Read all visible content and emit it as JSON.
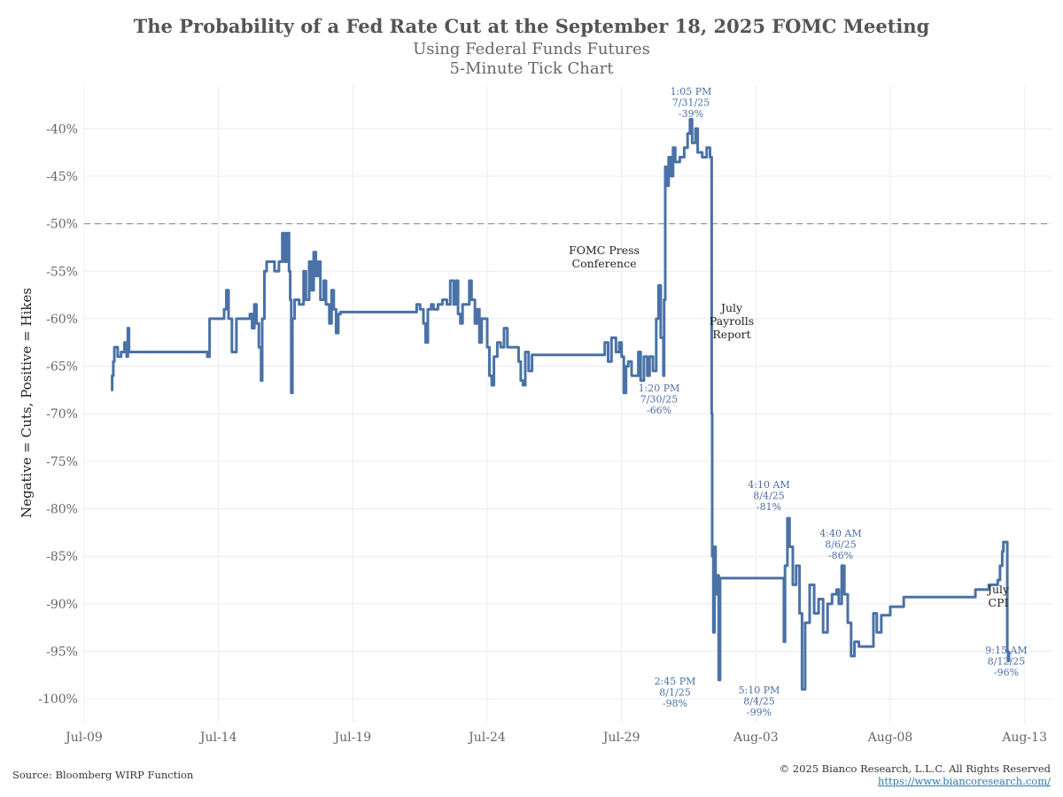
{
  "chart_data": {
    "type": "line",
    "title": "The Probability of a Fed Rate Cut at the September 18, 2025 FOMC Meeting",
    "subtitle": "Using Federal Funds Futures",
    "subtitle2": "5-Minute Tick Chart",
    "ylabel": "Negative = Cuts, Positive = Hikes",
    "xlabel": "",
    "x_axis_type": "date",
    "xlim": [
      "2025-07-09",
      "2025-08-14"
    ],
    "ylim": [
      -102.5,
      -35.5
    ],
    "x_ticks": [
      {
        "date": "2025-07-09",
        "label": "Jul-09"
      },
      {
        "date": "2025-07-14",
        "label": "Jul-14"
      },
      {
        "date": "2025-07-19",
        "label": "Jul-19"
      },
      {
        "date": "2025-07-24",
        "label": "Jul-24"
      },
      {
        "date": "2025-07-29",
        "label": "Jul-29"
      },
      {
        "date": "2025-08-03",
        "label": "Aug-03"
      },
      {
        "date": "2025-08-08",
        "label": "Aug-08"
      },
      {
        "date": "2025-08-13",
        "label": "Aug-13"
      }
    ],
    "y_ticks": [
      -40,
      -45,
      -50,
      -55,
      -60,
      -65,
      -70,
      -75,
      -80,
      -85,
      -90,
      -95,
      -100
    ],
    "y_tick_labels": [
      "-40%",
      "-45%",
      "-50%",
      "-55%",
      "-60%",
      "-65%",
      "-70%",
      "-75%",
      "-80%",
      "-85%",
      "-90%",
      "-95%",
      "-100%"
    ],
    "grid": true,
    "reference_line": {
      "y": -50,
      "style": "dashed"
    },
    "series_color": "#4a72a6",
    "series": [
      {
        "name": "",
        "points": [
          [
            "2025-07-10 00:00",
            -67.5
          ],
          [
            "2025-07-10 01:00",
            -66.0
          ],
          [
            "2025-07-10 02:00",
            -64.5
          ],
          [
            "2025-07-10 03:00",
            -63.0
          ],
          [
            "2025-07-10 06:00",
            -64.0
          ],
          [
            "2025-07-10 09:00",
            -63.5
          ],
          [
            "2025-07-10 12:00",
            -62.5
          ],
          [
            "2025-07-10 14:00",
            -64.0
          ],
          [
            "2025-07-10 15:00",
            -61.0
          ],
          [
            "2025-07-10 16:00",
            -63.5
          ],
          [
            "2025-07-11 00:00",
            -63.5
          ],
          [
            "2025-07-12 12:00",
            -63.5
          ],
          [
            "2025-07-13 12:00",
            -63.5
          ],
          [
            "2025-07-13 14:00",
            -64.0
          ],
          [
            "2025-07-13 16:00",
            -60.0
          ],
          [
            "2025-07-14 00:00",
            -60.0
          ],
          [
            "2025-07-14 05:00",
            -59.0
          ],
          [
            "2025-07-14 07:00",
            -57.0
          ],
          [
            "2025-07-14 09:00",
            -60.0
          ],
          [
            "2025-07-14 12:00",
            -63.5
          ],
          [
            "2025-07-14 16:00",
            -60.0
          ],
          [
            "2025-07-15 00:00",
            -60.0
          ],
          [
            "2025-07-15 04:00",
            -59.5
          ],
          [
            "2025-07-15 06:00",
            -61.0
          ],
          [
            "2025-07-15 08:00",
            -58.5
          ],
          [
            "2025-07-15 10:00",
            -60.5
          ],
          [
            "2025-07-15 12:00",
            -63.0
          ],
          [
            "2025-07-15 14:00",
            -66.5
          ],
          [
            "2025-07-15 15:00",
            -60.0
          ],
          [
            "2025-07-15 17:00",
            -55.0
          ],
          [
            "2025-07-15 19:00",
            -54.0
          ],
          [
            "2025-07-16 00:00",
            -54.0
          ],
          [
            "2025-07-16 02:00",
            -55.0
          ],
          [
            "2025-07-16 06:00",
            -54.0
          ],
          [
            "2025-07-16 09:00",
            -51.0
          ],
          [
            "2025-07-16 11:00",
            -54.0
          ],
          [
            "2025-07-16 13:00",
            -51.0
          ],
          [
            "2025-07-16 15:00",
            -55.0
          ],
          [
            "2025-07-16 16:00",
            -58.0
          ],
          [
            "2025-07-16 17:00",
            -67.8
          ],
          [
            "2025-07-16 18:00",
            -60.0
          ],
          [
            "2025-07-16 20:00",
            -58.0
          ],
          [
            "2025-07-17 00:00",
            -58.5
          ],
          [
            "2025-07-17 04:00",
            -55.0
          ],
          [
            "2025-07-17 06:00",
            -58.0
          ],
          [
            "2025-07-17 09:00",
            -54.0
          ],
          [
            "2025-07-17 11:00",
            -57.0
          ],
          [
            "2025-07-17 13:00",
            -53.0
          ],
          [
            "2025-07-17 15:00",
            -55.5
          ],
          [
            "2025-07-17 17:00",
            -54.0
          ],
          [
            "2025-07-17 19:00",
            -58.0
          ],
          [
            "2025-07-17 22:00",
            -56.0
          ],
          [
            "2025-07-18 00:00",
            -58.5
          ],
          [
            "2025-07-18 03:00",
            -60.5
          ],
          [
            "2025-07-18 05:00",
            -57.0
          ],
          [
            "2025-07-18 07:00",
            -59.0
          ],
          [
            "2025-07-18 09:00",
            -61.5
          ],
          [
            "2025-07-18 11:00",
            -59.5
          ],
          [
            "2025-07-18 13:00",
            -59.3
          ],
          [
            "2025-07-19 12:00",
            -59.3
          ],
          [
            "2025-07-20 12:00",
            -59.3
          ],
          [
            "2025-07-21 06:00",
            -59.3
          ],
          [
            "2025-07-21 09:00",
            -58.5
          ],
          [
            "2025-07-21 12:00",
            -59.0
          ],
          [
            "2025-07-21 15:00",
            -60.5
          ],
          [
            "2025-07-21 17:00",
            -62.5
          ],
          [
            "2025-07-21 19:00",
            -59.0
          ],
          [
            "2025-07-21 22:00",
            -58.5
          ],
          [
            "2025-07-22 00:00",
            -59.0
          ],
          [
            "2025-07-22 04:00",
            -58.5
          ],
          [
            "2025-07-22 08:00",
            -58.0
          ],
          [
            "2025-07-22 12:00",
            -58.5
          ],
          [
            "2025-07-22 15:00",
            -56.0
          ],
          [
            "2025-07-22 18:00",
            -58.5
          ],
          [
            "2025-07-22 20:00",
            -56.0
          ],
          [
            "2025-07-22 22:00",
            -59.5
          ],
          [
            "2025-07-23 00:00",
            -60.5
          ],
          [
            "2025-07-23 02:00",
            -58.5
          ],
          [
            "2025-07-23 06:00",
            -58.5
          ],
          [
            "2025-07-23 08:00",
            -56.0
          ],
          [
            "2025-07-23 10:00",
            -58.0
          ],
          [
            "2025-07-23 13:00",
            -60.5
          ],
          [
            "2025-07-23 15:00",
            -59.0
          ],
          [
            "2025-07-23 17:00",
            -62.5
          ],
          [
            "2025-07-23 19:00",
            -60.0
          ],
          [
            "2025-07-24 00:00",
            -63.0
          ],
          [
            "2025-07-24 02:00",
            -66.0
          ],
          [
            "2025-07-24 04:00",
            -67.0
          ],
          [
            "2025-07-24 06:00",
            -64.0
          ],
          [
            "2025-07-24 09:00",
            -62.5
          ],
          [
            "2025-07-24 12:00",
            -63.0
          ],
          [
            "2025-07-24 15:00",
            -61.0
          ],
          [
            "2025-07-24 18:00",
            -63.0
          ],
          [
            "2025-07-25 00:00",
            -63.0
          ],
          [
            "2025-07-25 04:00",
            -64.5
          ],
          [
            "2025-07-25 06:00",
            -66.5
          ],
          [
            "2025-07-25 08:00",
            -67.0
          ],
          [
            "2025-07-25 10:00",
            -63.5
          ],
          [
            "2025-07-25 13:00",
            -65.5
          ],
          [
            "2025-07-25 16:00",
            -63.8
          ],
          [
            "2025-07-26 12:00",
            -63.8
          ],
          [
            "2025-07-27 12:00",
            -63.8
          ],
          [
            "2025-07-28 06:00",
            -63.8
          ],
          [
            "2025-07-28 09:00",
            -62.5
          ],
          [
            "2025-07-28 12:00",
            -64.5
          ],
          [
            "2025-07-28 15:00",
            -62.0
          ],
          [
            "2025-07-28 19:00",
            -63.5
          ],
          [
            "2025-07-28 22:00",
            -62.5
          ],
          [
            "2025-07-29 00:00",
            -64.0
          ],
          [
            "2025-07-29 02:00",
            -67.8
          ],
          [
            "2025-07-29 04:00",
            -65.0
          ],
          [
            "2025-07-29 06:00",
            -64.5
          ],
          [
            "2025-07-29 09:00",
            -66.0
          ],
          [
            "2025-07-29 12:00",
            -66.0
          ],
          [
            "2025-07-29 15:00",
            -63.5
          ],
          [
            "2025-07-29 17:00",
            -66.5
          ],
          [
            "2025-07-29 20:00",
            -64.0
          ],
          [
            "2025-07-29 23:00",
            -66.0
          ],
          [
            "2025-07-30 01:00",
            -64.0
          ],
          [
            "2025-07-30 04:00",
            -65.5
          ],
          [
            "2025-07-30 07:00",
            -60.0
          ],
          [
            "2025-07-30 09:00",
            -56.5
          ],
          [
            "2025-07-30 11:00",
            -62.0
          ],
          [
            "2025-07-30 13:20",
            -66.0
          ],
          [
            "2025-07-30 14:00",
            -58.0
          ],
          [
            "2025-07-30 15:00",
            -44.0
          ],
          [
            "2025-07-30 16:00",
            -46.0
          ],
          [
            "2025-07-30 18:00",
            -43.0
          ],
          [
            "2025-07-30 20:00",
            -45.0
          ],
          [
            "2025-07-30 22:00",
            -42.0
          ],
          [
            "2025-07-31 00:00",
            -43.5
          ],
          [
            "2025-07-31 04:00",
            -43.0
          ],
          [
            "2025-07-31 08:00",
            -42.0
          ],
          [
            "2025-07-31 11:00",
            -40.5
          ],
          [
            "2025-07-31 13:05",
            -39.0
          ],
          [
            "2025-07-31 15:00",
            -41.5
          ],
          [
            "2025-07-31 18:00",
            -40.0
          ],
          [
            "2025-07-31 20:00",
            -42.5
          ],
          [
            "2025-08-01 00:00",
            -43.0
          ],
          [
            "2025-08-01 04:00",
            -42.0
          ],
          [
            "2025-08-01 07:00",
            -43.0
          ],
          [
            "2025-08-01 08:30",
            -70.0
          ],
          [
            "2025-08-01 09:00",
            -85.0
          ],
          [
            "2025-08-01 10:00",
            -93.0
          ],
          [
            "2025-08-01 11:00",
            -84.0
          ],
          [
            "2025-08-01 12:00",
            -89.0
          ],
          [
            "2025-08-01 13:00",
            -87.0
          ],
          [
            "2025-08-01 14:45",
            -98.0
          ],
          [
            "2025-08-01 16:00",
            -87.3
          ],
          [
            "2025-08-02 12:00",
            -87.3
          ],
          [
            "2025-08-03 12:00",
            -87.3
          ],
          [
            "2025-08-04 00:00",
            -87.3
          ],
          [
            "2025-08-04 01:00",
            -94.0
          ],
          [
            "2025-08-04 02:00",
            -86.0
          ],
          [
            "2025-08-04 04:10",
            -81.0
          ],
          [
            "2025-08-04 06:00",
            -84.0
          ],
          [
            "2025-08-04 09:00",
            -88.0
          ],
          [
            "2025-08-04 12:00",
            -86.0
          ],
          [
            "2025-08-04 15:00",
            -91.0
          ],
          [
            "2025-08-04 17:10",
            -99.0
          ],
          [
            "2025-08-04 20:00",
            -92.0
          ],
          [
            "2025-08-05 00:00",
            -88.0
          ],
          [
            "2025-08-05 04:00",
            -91.0
          ],
          [
            "2025-08-05 08:00",
            -89.5
          ],
          [
            "2025-08-05 12:00",
            -93.0
          ],
          [
            "2025-08-05 16:00",
            -90.0
          ],
          [
            "2025-08-05 20:00",
            -89.0
          ],
          [
            "2025-08-06 00:00",
            -88.5
          ],
          [
            "2025-08-06 02:00",
            -90.0
          ],
          [
            "2025-08-06 04:40",
            -86.0
          ],
          [
            "2025-08-06 07:00",
            -89.0
          ],
          [
            "2025-08-06 10:00",
            -92.0
          ],
          [
            "2025-08-06 13:00",
            -95.5
          ],
          [
            "2025-08-06 16:00",
            -94.0
          ],
          [
            "2025-08-06 20:00",
            -94.5
          ],
          [
            "2025-08-07 00:00",
            -94.5
          ],
          [
            "2025-08-07 06:00",
            -94.5
          ],
          [
            "2025-08-07 09:00",
            -91.0
          ],
          [
            "2025-08-07 12:00",
            -93.0
          ],
          [
            "2025-08-07 16:00",
            -91.2
          ],
          [
            "2025-08-07 20:00",
            -91.2
          ],
          [
            "2025-08-08 00:00",
            -90.3
          ],
          [
            "2025-08-08 06:00",
            -90.3
          ],
          [
            "2025-08-08 12:00",
            -89.3
          ],
          [
            "2025-08-09 12:00",
            -89.3
          ],
          [
            "2025-08-10 12:00",
            -89.3
          ],
          [
            "2025-08-11 00:00",
            -89.3
          ],
          [
            "2025-08-11 04:00",
            -88.5
          ],
          [
            "2025-08-11 10:00",
            -88.5
          ],
          [
            "2025-08-11 16:00",
            -88.0
          ],
          [
            "2025-08-12 00:00",
            -87.5
          ],
          [
            "2025-08-12 02:00",
            -86.0
          ],
          [
            "2025-08-12 04:00",
            -84.5
          ],
          [
            "2025-08-12 05:00",
            -83.5
          ],
          [
            "2025-08-12 08:30",
            -95.0
          ],
          [
            "2025-08-12 09:15",
            -96.0
          ],
          [
            "2025-08-12 10:00",
            -95.0
          ]
        ]
      }
    ],
    "annotations_blue": [
      {
        "lines": [
          "1:05 PM",
          "7/31/25",
          "-39%"
        ]
      },
      {
        "lines": [
          "1:20 PM",
          "7/30/25",
          "-66%"
        ]
      },
      {
        "lines": [
          "2:45 PM",
          "8/1/25",
          "-98%"
        ]
      },
      {
        "lines": [
          "4:10 AM",
          "8/4/25",
          "-81%"
        ]
      },
      {
        "lines": [
          "5:10 PM",
          "8/4/25",
          "-99%"
        ]
      },
      {
        "lines": [
          "4:40 AM",
          "8/6/25",
          "-86%"
        ]
      },
      {
        "lines": [
          "9:15 AM",
          "8/12/25",
          "-96%"
        ]
      }
    ],
    "annotations_black": [
      {
        "lines": [
          "FOMC Press",
          "Conference"
        ]
      },
      {
        "lines": [
          "July",
          "Payrolls",
          "Report"
        ]
      },
      {
        "lines": [
          "July",
          "CPI"
        ]
      }
    ]
  },
  "footer": {
    "source": "Source: Bloomberg WIRP Function",
    "copyright": "© 2025 Bianco Research, L.L.C. All Rights Reserved",
    "url": "https://www.biancoresearch.com/"
  }
}
